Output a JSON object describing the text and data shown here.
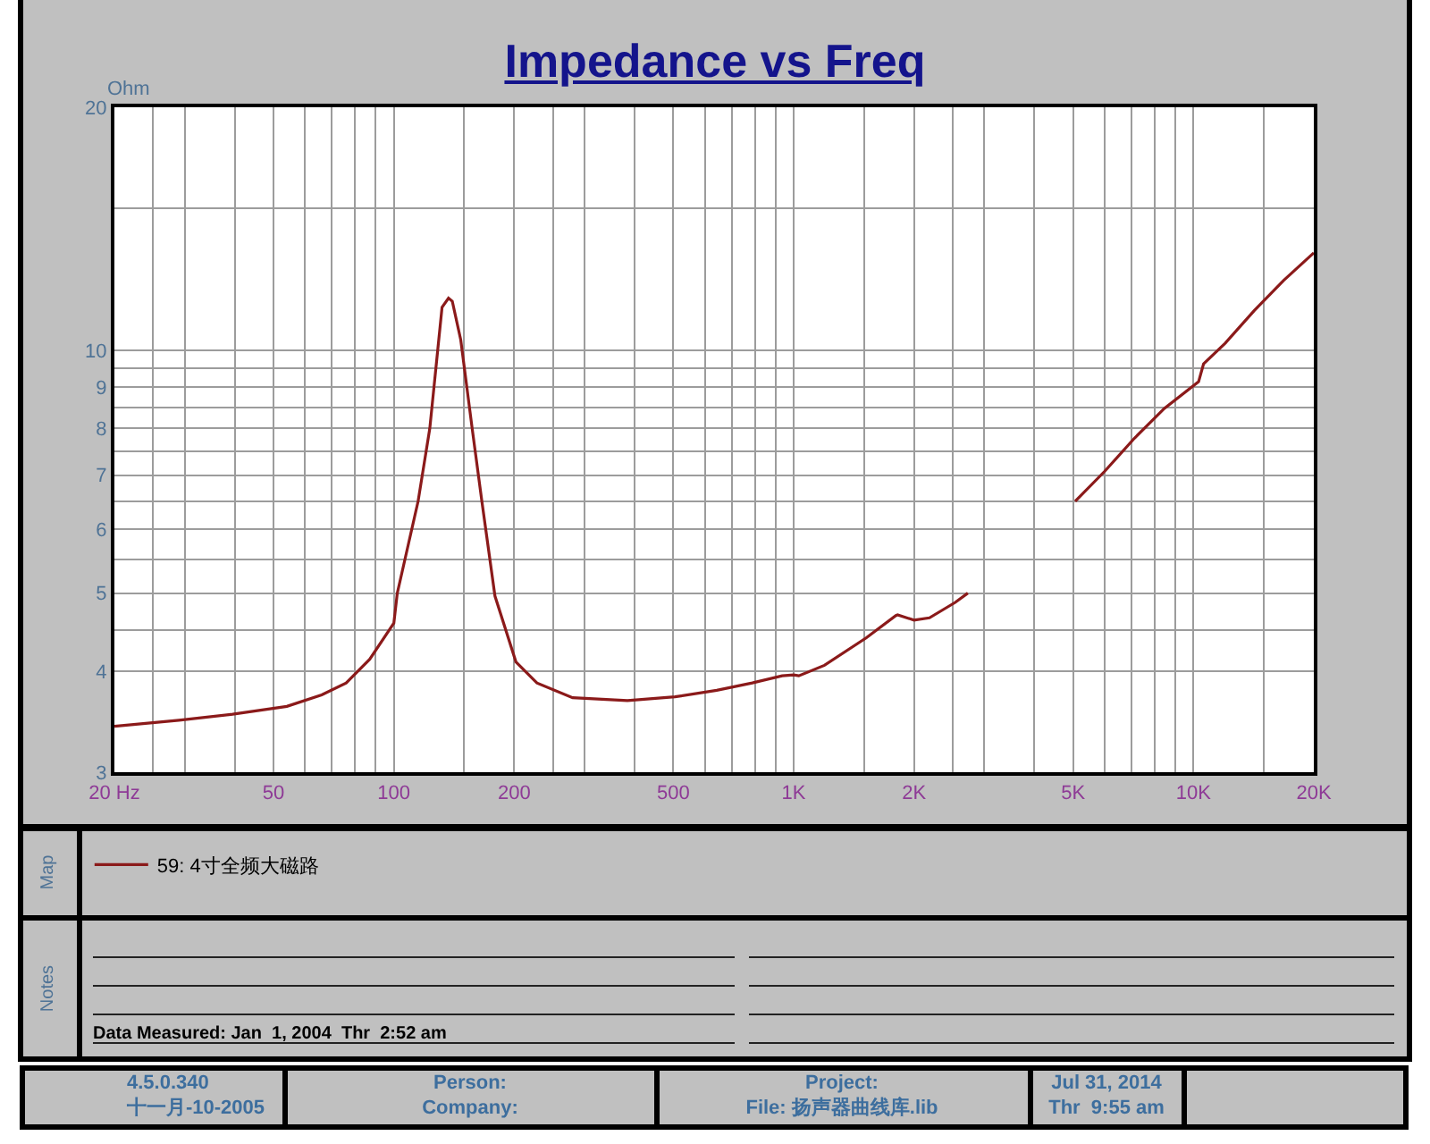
{
  "chart_data": {
    "type": "line",
    "title": "Impedance vs Freq",
    "ylabel": "Ohm",
    "x": [
      20,
      29,
      39.5,
      54,
      66,
      76,
      87,
      100,
      102,
      115,
      123,
      132,
      137,
      140,
      147,
      157,
      166,
      179,
      202,
      228,
      280,
      384,
      505,
      642,
      788,
      936,
      1000,
      1030,
      1194,
      1518,
      1802,
      1820,
      2000,
      2186,
      2536,
      2727,
      3500,
      5060,
      6000,
      7120,
      8460,
      10300,
      10600,
      12000,
      14200,
      16800,
      20000
    ],
    "series": [
      {
        "name": "59: 4寸全频大磁路",
        "color": "#8b1a1a",
        "values": [
          3.42,
          3.48,
          3.54,
          3.62,
          3.74,
          3.87,
          4.14,
          4.59,
          5.0,
          6.5,
          8.0,
          11.3,
          11.6,
          11.5,
          10.3,
          8.0,
          6.5,
          4.96,
          4.11,
          3.87,
          3.71,
          3.68,
          3.72,
          3.79,
          3.87,
          3.95,
          3.96,
          3.95,
          4.07,
          4.4,
          4.69,
          4.7,
          4.63,
          4.66,
          4.87,
          5.0,
          null,
          6.5,
          7.08,
          7.78,
          8.47,
          9.14,
          9.62,
          10.2,
          11.2,
          12.2,
          13.2
        ]
      }
    ],
    "xlim": [
      20,
      20000
    ],
    "ylim": [
      3,
      20
    ],
    "xticks": [
      {
        "value": 20,
        "label": "20 Hz"
      },
      {
        "value": 25,
        "label": null
      },
      {
        "value": 30,
        "label": null
      },
      {
        "value": 40,
        "label": null
      },
      50,
      {
        "value": 60,
        "label": null
      },
      {
        "value": 70,
        "label": null
      },
      {
        "value": 80,
        "label": null
      },
      {
        "value": 90,
        "label": null
      },
      100,
      {
        "value": 150,
        "label": null
      },
      200,
      {
        "value": 250,
        "label": null
      },
      {
        "value": 300,
        "label": null
      },
      {
        "value": 400,
        "label": null
      },
      500,
      {
        "value": 600,
        "label": null
      },
      {
        "value": 700,
        "label": null
      },
      {
        "value": 800,
        "label": null
      },
      {
        "value": 900,
        "label": null
      },
      {
        "value": 1000,
        "label": "1K"
      },
      {
        "value": 1500,
        "label": null
      },
      {
        "value": 2000,
        "label": "2K"
      },
      {
        "value": 2500,
        "label": null
      },
      {
        "value": 3000,
        "label": null
      },
      {
        "value": 4000,
        "label": null
      },
      {
        "value": 5000,
        "label": "5K"
      },
      {
        "value": 6000,
        "label": null
      },
      {
        "value": 7000,
        "label": null
      },
      {
        "value": 8000,
        "label": null
      },
      {
        "value": 9000,
        "label": null
      },
      {
        "value": 10000,
        "label": "10K"
      },
      {
        "value": 15000,
        "label": null
      },
      {
        "value": 20000,
        "label": "20K"
      }
    ],
    "yticks": [
      3,
      4,
      {
        "value": 4.5,
        "label": null
      },
      5,
      {
        "value": 5.5,
        "label": null
      },
      6,
      {
        "value": 6.5,
        "label": null
      },
      7,
      {
        "value": 7.5,
        "label": null
      },
      8,
      {
        "value": 8.5,
        "label": null
      },
      9,
      {
        "value": 9.5,
        "label": null
      },
      10,
      {
        "value": 15,
        "label": null
      },
      20
    ],
    "log": "xy",
    "grid": true,
    "legend": "bottom left",
    "annotations": [
      "Map",
      "Notes",
      "Data Measured: Jan  1, 2004  Thr  2:52 am",
      "4.5.0.340",
      "十一月-10-2005",
      "Person:",
      "Company:",
      "Project:",
      "File: 扬声器曲线库.lib",
      "Jul 31, 2014",
      "Thr  9:55 am"
    ]
  }
}
